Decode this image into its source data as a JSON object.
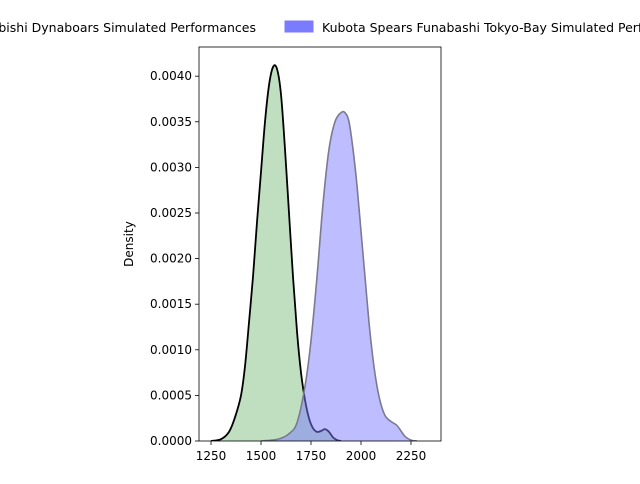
{
  "chart_data": {
    "type": "area",
    "title": "",
    "xlabel": "",
    "ylabel": "Density",
    "xlim": [
      1190,
      2400
    ],
    "ylim": [
      0,
      0.00432
    ],
    "x_ticks": [
      1250,
      1500,
      1750,
      2000,
      2250
    ],
    "x_tick_labels": [
      "1250",
      "1500",
      "1750",
      "2000",
      "2250"
    ],
    "y_ticks": [
      0,
      0.0005,
      0.001,
      0.0015,
      0.002,
      0.0025,
      0.003,
      0.0035,
      0.004
    ],
    "y_tick_labels": [
      "0.0000",
      "0.0005",
      "0.0010",
      "0.0015",
      "0.0020",
      "0.0025",
      "0.0030",
      "0.0035",
      "0.0040"
    ],
    "grid": false,
    "legend_position": "top",
    "series": [
      {
        "name": "Mitsubishi Dynaboars Simulated Performances",
        "fill_color": "#81c081",
        "line_color": "#000000",
        "fill_opacity": 0.5,
        "points": [
          [
            1250,
            0.0
          ],
          [
            1300,
            2e-05
          ],
          [
            1340,
            0.0001
          ],
          [
            1370,
            0.00026
          ],
          [
            1400,
            0.0005
          ],
          [
            1420,
            0.00082
          ],
          [
            1440,
            0.0013
          ],
          [
            1460,
            0.0018
          ],
          [
            1480,
            0.0024
          ],
          [
            1500,
            0.00295
          ],
          [
            1520,
            0.0035
          ],
          [
            1540,
            0.0039
          ],
          [
            1560,
            0.0041
          ],
          [
            1580,
            0.00408
          ],
          [
            1600,
            0.0038
          ],
          [
            1620,
            0.0032
          ],
          [
            1640,
            0.0025
          ],
          [
            1660,
            0.0018
          ],
          [
            1680,
            0.0012
          ],
          [
            1700,
            0.00075
          ],
          [
            1720,
            0.00045
          ],
          [
            1740,
            0.00025
          ],
          [
            1760,
            0.00014
          ],
          [
            1780,
            0.0001
          ],
          [
            1800,
            0.00011
          ],
          [
            1820,
            0.00013
          ],
          [
            1840,
            0.0001
          ],
          [
            1860,
            4e-05
          ],
          [
            1880,
            1e-05
          ],
          [
            1900,
            0.0
          ]
        ]
      },
      {
        "name": "Kubota Spears Funabashi Tokyo-Bay Simulated Performances",
        "fill_color": "#7b7bff",
        "line_color": "#7a7a90",
        "fill_opacity": 0.5,
        "points": [
          [
            1500,
            0.0
          ],
          [
            1560,
            1e-05
          ],
          [
            1600,
            3e-05
          ],
          [
            1640,
            8e-05
          ],
          [
            1680,
            0.0002
          ],
          [
            1720,
            0.0006
          ],
          [
            1750,
            0.0011
          ],
          [
            1780,
            0.0018
          ],
          [
            1810,
            0.0026
          ],
          [
            1840,
            0.0032
          ],
          [
            1870,
            0.0035
          ],
          [
            1900,
            0.0036
          ],
          [
            1920,
            0.0036
          ],
          [
            1940,
            0.0035
          ],
          [
            1960,
            0.0032
          ],
          [
            1980,
            0.0028
          ],
          [
            2000,
            0.0023
          ],
          [
            2020,
            0.0018
          ],
          [
            2040,
            0.0013
          ],
          [
            2060,
            0.0009
          ],
          [
            2080,
            0.0006
          ],
          [
            2100,
            0.0004
          ],
          [
            2120,
            0.00028
          ],
          [
            2140,
            0.00023
          ],
          [
            2160,
            0.0002
          ],
          [
            2180,
            0.00017
          ],
          [
            2200,
            0.00011
          ],
          [
            2220,
            5e-05
          ],
          [
            2250,
            1e-05
          ],
          [
            2280,
            0.0
          ]
        ]
      }
    ]
  }
}
